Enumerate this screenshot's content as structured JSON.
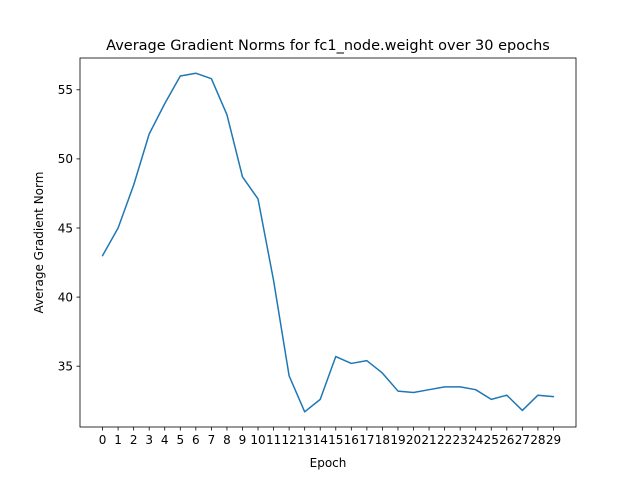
{
  "chart_data": {
    "type": "line",
    "title": "Average Gradient Norms for fc1_node.weight over 30 epochs",
    "xlabel": "Epoch",
    "ylabel": "Average Gradient Norm",
    "x": [
      0,
      1,
      2,
      3,
      4,
      5,
      6,
      7,
      8,
      9,
      10,
      11,
      12,
      13,
      14,
      15,
      16,
      17,
      18,
      19,
      20,
      21,
      22,
      23,
      24,
      25,
      26,
      27,
      28,
      29
    ],
    "x_tick_labels": [
      "0",
      "1",
      "2",
      "3",
      "4",
      "5",
      "6",
      "7",
      "8",
      "9",
      "10",
      "11",
      "12",
      "13",
      "14",
      "15",
      "16",
      "17",
      "18",
      "19",
      "20",
      "21",
      "22",
      "23",
      "24",
      "25",
      "26",
      "27",
      "28",
      "29"
    ],
    "y_ticks": [
      35,
      40,
      45,
      50,
      55
    ],
    "y_tick_labels": [
      "35",
      "40",
      "45",
      "50",
      "55"
    ],
    "xlim": [
      -1.45,
      30.45
    ],
    "ylim": [
      30.6,
      57.3
    ],
    "grid": false,
    "series": [
      {
        "color": "#1f77b4",
        "values": [
          43.0,
          45.0,
          48.1,
          51.8,
          54.0,
          56.0,
          56.2,
          55.8,
          53.2,
          48.7,
          47.1,
          41.2,
          34.3,
          31.7,
          32.6,
          35.7,
          35.2,
          35.4,
          34.5,
          33.2,
          33.1,
          33.3,
          33.5,
          33.5,
          33.3,
          32.6,
          32.9,
          31.8,
          32.9,
          32.8
        ]
      }
    ]
  }
}
